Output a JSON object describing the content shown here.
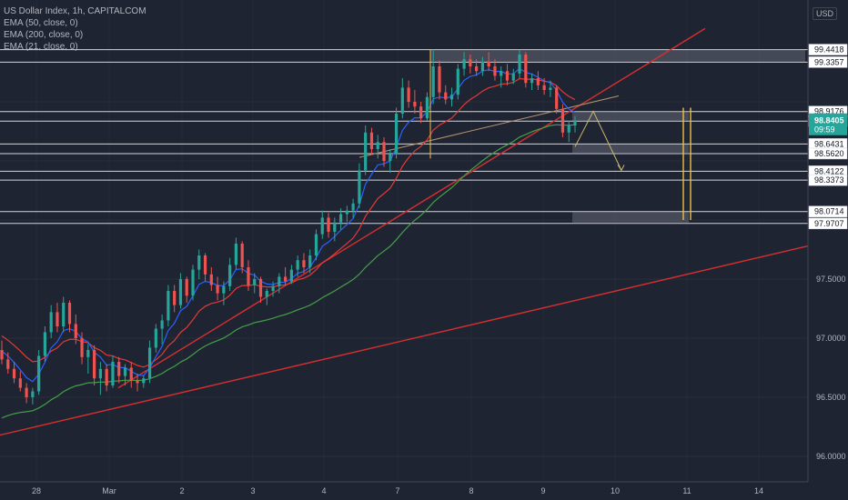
{
  "header": {
    "symbol_line": "US Dollar Index, 1h, CAPITALCOM",
    "indicators": [
      "EMA (50, close, 0)",
      "EMA (200, close, 0)",
      "EMA (21, close, 0)"
    ],
    "currency": "USD",
    "countdown": "09:59"
  },
  "colors": {
    "background": "#1f2433",
    "bull": "#26a69a",
    "bear": "#ef5350",
    "ema21": "#2962ff",
    "ema50": "#e53935",
    "ema200": "#43a047",
    "trendline": "#d32f2f",
    "projection": "#c8b76a",
    "vertical_lines": "#f0c040"
  },
  "chart_data": {
    "type": "candlestick",
    "title": "US Dollar Index, 1h, CAPITALCOM",
    "ylim": [
      95.8,
      99.62
    ],
    "xlim": [
      27.5,
      15.3
    ],
    "x_ticks": [
      "28",
      "Mar",
      "2",
      "3",
      "4",
      "7",
      "8",
      "9",
      "10",
      "11",
      "14"
    ],
    "y_ticks": [
      96.0,
      96.5,
      97.0,
      97.5
    ],
    "price_levels": [
      99.4418,
      99.3357,
      98.9176,
      98.8365,
      98.6431,
      98.562,
      98.4122,
      98.3373,
      98.0714,
      97.9707
    ],
    "last_price": 98.8405,
    "candles_ohlc": [
      [
        96.9,
        96.98,
        96.78,
        96.82
      ],
      [
        96.82,
        96.88,
        96.7,
        96.74
      ],
      [
        96.74,
        96.8,
        96.62,
        96.66
      ],
      [
        96.66,
        96.72,
        96.55,
        96.58
      ],
      [
        96.58,
        96.62,
        96.45,
        96.5
      ],
      [
        96.5,
        96.58,
        96.44,
        96.55
      ],
      [
        96.55,
        96.9,
        96.52,
        96.85
      ],
      [
        96.85,
        97.1,
        96.8,
        97.05
      ],
      [
        97.05,
        97.28,
        97.0,
        97.22
      ],
      [
        97.22,
        97.3,
        97.05,
        97.1
      ],
      [
        97.1,
        97.35,
        97.05,
        97.3
      ],
      [
        97.3,
        97.32,
        97.05,
        97.12
      ],
      [
        97.12,
        97.2,
        96.95,
        97.0
      ],
      [
        97.0,
        97.05,
        96.78,
        96.84
      ],
      [
        96.84,
        96.95,
        96.7,
        96.9
      ],
      [
        96.9,
        96.94,
        96.6,
        96.66
      ],
      [
        96.66,
        96.8,
        96.52,
        96.74
      ],
      [
        96.74,
        96.78,
        96.55,
        96.6
      ],
      [
        96.6,
        96.85,
        96.58,
        96.8
      ],
      [
        96.8,
        96.84,
        96.62,
        96.68
      ],
      [
        96.68,
        96.78,
        96.6,
        96.75
      ],
      [
        96.75,
        96.8,
        96.58,
        96.64
      ],
      [
        96.64,
        96.7,
        96.55,
        96.62
      ],
      [
        96.62,
        96.68,
        96.58,
        96.66
      ],
      [
        96.66,
        96.98,
        96.62,
        96.92
      ],
      [
        96.92,
        97.12,
        96.88,
        97.08
      ],
      [
        97.08,
        97.2,
        96.95,
        97.15
      ],
      [
        97.15,
        97.45,
        97.1,
        97.4
      ],
      [
        97.4,
        97.45,
        97.22,
        97.28
      ],
      [
        97.28,
        97.55,
        97.25,
        97.5
      ],
      [
        97.5,
        97.52,
        97.3,
        97.36
      ],
      [
        97.36,
        97.62,
        97.32,
        97.58
      ],
      [
        97.58,
        97.75,
        97.5,
        97.7
      ],
      [
        97.7,
        97.72,
        97.48,
        97.54
      ],
      [
        97.54,
        97.6,
        97.4,
        97.45
      ],
      [
        97.45,
        97.52,
        97.32,
        97.38
      ],
      [
        97.38,
        97.48,
        97.28,
        97.44
      ],
      [
        97.44,
        97.68,
        97.4,
        97.62
      ],
      [
        97.62,
        97.85,
        97.58,
        97.8
      ],
      [
        97.8,
        97.82,
        97.55,
        97.6
      ],
      [
        97.6,
        97.66,
        97.4,
        97.45
      ],
      [
        97.45,
        97.55,
        97.38,
        97.5
      ],
      [
        97.5,
        97.52,
        97.3,
        97.35
      ],
      [
        97.35,
        97.42,
        97.28,
        97.4
      ],
      [
        97.4,
        97.48,
        97.35,
        97.44
      ],
      [
        97.44,
        97.55,
        97.38,
        97.52
      ],
      [
        97.52,
        97.6,
        97.45,
        97.48
      ],
      [
        97.48,
        97.62,
        97.46,
        97.58
      ],
      [
        97.58,
        97.7,
        97.52,
        97.66
      ],
      [
        97.66,
        97.72,
        97.55,
        97.6
      ],
      [
        97.6,
        97.75,
        97.55,
        97.7
      ],
      [
        97.7,
        97.92,
        97.66,
        97.88
      ],
      [
        97.88,
        98.08,
        97.84,
        98.02
      ],
      [
        98.02,
        98.06,
        97.85,
        97.9
      ],
      [
        97.9,
        98.02,
        97.82,
        97.98
      ],
      [
        97.98,
        98.1,
        97.92,
        98.05
      ],
      [
        98.05,
        98.12,
        97.98,
        98.08
      ],
      [
        98.08,
        98.18,
        98.02,
        98.14
      ],
      [
        98.14,
        98.48,
        98.1,
        98.42
      ],
      [
        98.42,
        98.8,
        98.38,
        98.74
      ],
      [
        98.74,
        98.78,
        98.55,
        98.6
      ],
      [
        98.6,
        98.72,
        98.52,
        98.66
      ],
      [
        98.66,
        98.7,
        98.45,
        98.5
      ],
      [
        98.5,
        98.6,
        98.4,
        98.56
      ],
      [
        98.56,
        98.95,
        98.52,
        98.9
      ],
      [
        98.9,
        99.2,
        98.86,
        99.12
      ],
      [
        99.12,
        99.18,
        98.95,
        99.0
      ],
      [
        99.0,
        99.1,
        98.9,
        98.96
      ],
      [
        98.96,
        99.0,
        98.82,
        98.86
      ],
      [
        98.86,
        99.08,
        98.84,
        99.04
      ],
      [
        99.04,
        99.44,
        98.98,
        99.3
      ],
      [
        99.3,
        99.35,
        99.02,
        99.08
      ],
      [
        99.08,
        99.14,
        98.98,
        99.02
      ],
      [
        99.02,
        99.12,
        98.96,
        99.06
      ],
      [
        99.06,
        99.32,
        99.02,
        99.28
      ],
      [
        99.28,
        99.42,
        99.22,
        99.36
      ],
      [
        99.36,
        99.4,
        99.24,
        99.3
      ],
      [
        99.3,
        99.36,
        99.22,
        99.26
      ],
      [
        99.26,
        99.38,
        99.22,
        99.34
      ],
      [
        99.34,
        99.42,
        99.26,
        99.3
      ],
      [
        99.3,
        99.36,
        99.18,
        99.22
      ],
      [
        99.22,
        99.3,
        99.12,
        99.26
      ],
      [
        99.26,
        99.32,
        99.14,
        99.18
      ],
      [
        99.18,
        99.28,
        99.15,
        99.24
      ],
      [
        99.24,
        99.44,
        99.2,
        99.4
      ],
      [
        99.4,
        99.42,
        99.12,
        99.16
      ],
      [
        99.16,
        99.24,
        99.1,
        99.2
      ],
      [
        99.2,
        99.26,
        99.1,
        99.14
      ],
      [
        99.14,
        99.2,
        99.06,
        99.1
      ],
      [
        99.1,
        99.18,
        99.04,
        99.12
      ],
      [
        99.12,
        99.14,
        98.9,
        98.94
      ],
      [
        98.94,
        98.98,
        98.7,
        98.74
      ],
      [
        98.74,
        98.84,
        98.66,
        98.8
      ],
      [
        98.8,
        98.88,
        98.74,
        98.84
      ]
    ],
    "annotations": {
      "rectangles": [
        [
          99.44,
          99.34,
          7.45,
          9.2
        ],
        [
          98.92,
          98.84,
          9.4,
          10.75
        ],
        [
          98.64,
          98.56,
          9.4,
          10.75
        ],
        [
          98.07,
          97.97,
          9.4,
          10.75
        ]
      ],
      "projection_path": [
        [
          9.42,
          98.62
        ],
        [
          9.68,
          98.92
        ],
        [
          10.0,
          98.42
        ]
      ]
    }
  }
}
